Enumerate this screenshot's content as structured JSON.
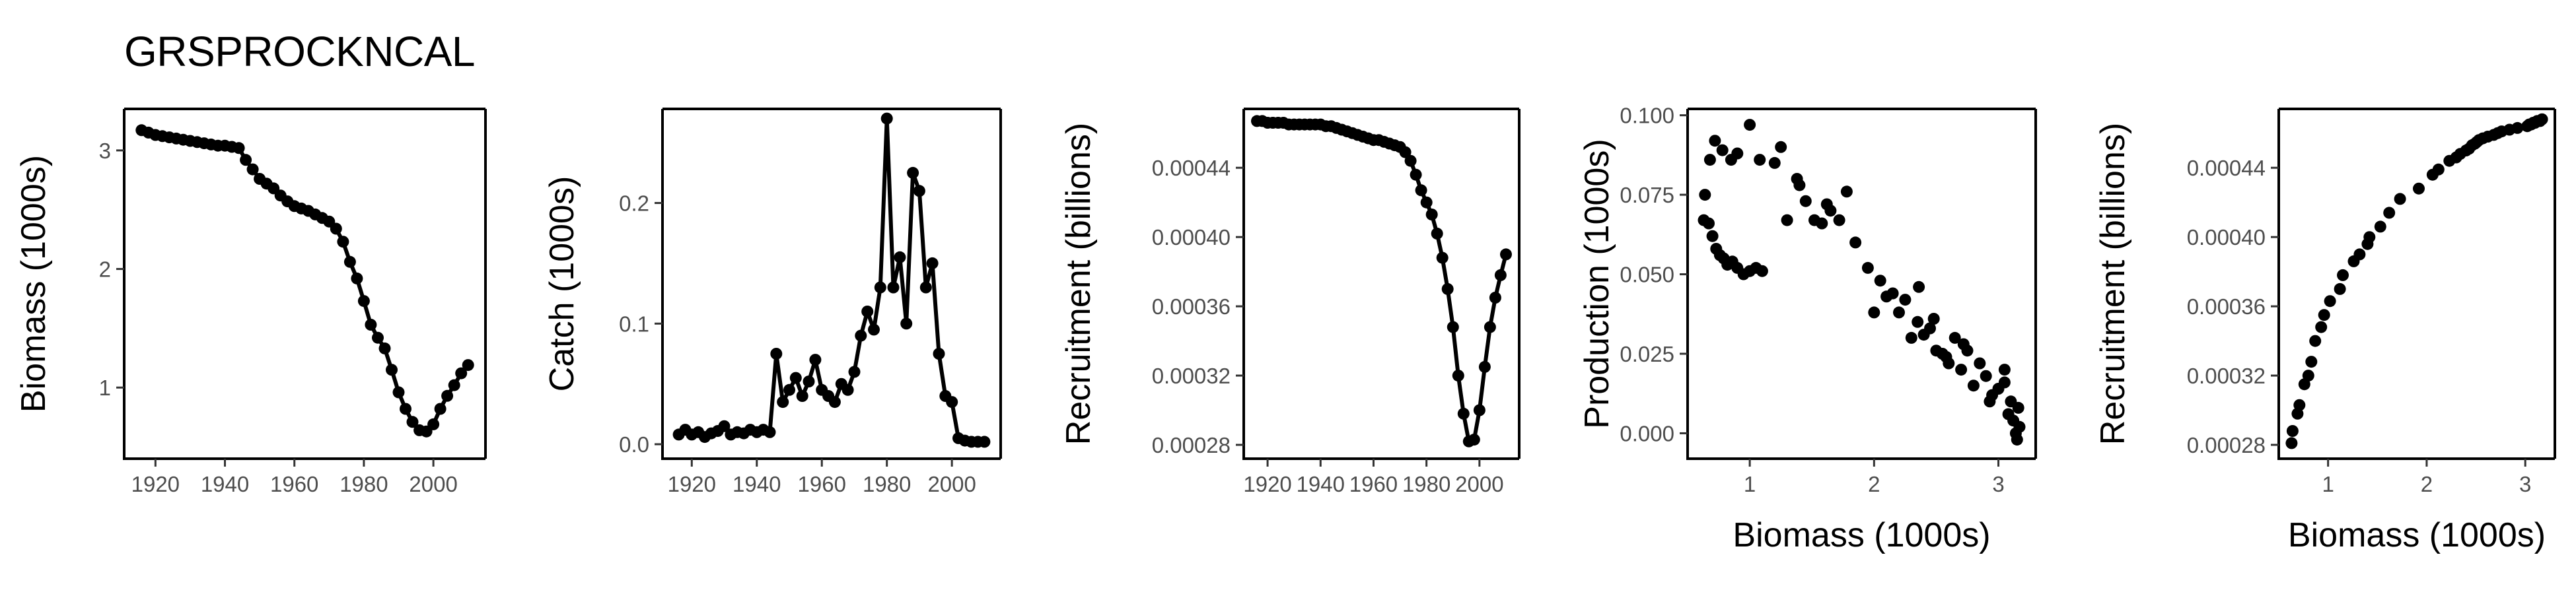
{
  "title": "GRSPROCKNCAL",
  "colors": {
    "points": "#000000",
    "line": "#000000",
    "tick_text": "#4d4d4d"
  },
  "chart_data": [
    {
      "id": "biomass-ts",
      "type": "line",
      "xlabel": "",
      "ylabel": "Biomass (1000s)",
      "xlim": [
        1911,
        2015
      ],
      "ylim": [
        0.4,
        3.35
      ],
      "xticks": [
        1920,
        1940,
        1960,
        1980,
        2000
      ],
      "yticks": [
        1,
        2,
        3
      ],
      "ytick_labels": [
        "1",
        "2",
        "3"
      ],
      "points": true,
      "x": [
        1916,
        1918,
        1920,
        1922,
        1924,
        1926,
        1928,
        1930,
        1932,
        1934,
        1936,
        1938,
        1940,
        1942,
        1944,
        1946,
        1948,
        1950,
        1952,
        1954,
        1956,
        1958,
        1960,
        1962,
        1964,
        1966,
        1968,
        1970,
        1972,
        1974,
        1976,
        1978,
        1980,
        1982,
        1984,
        1986,
        1988,
        1990,
        1992,
        1994,
        1996,
        1998,
        2000,
        2002,
        2004,
        2006,
        2008,
        2010
      ],
      "y": [
        3.17,
        3.15,
        3.13,
        3.12,
        3.11,
        3.1,
        3.09,
        3.08,
        3.07,
        3.06,
        3.05,
        3.04,
        3.04,
        3.03,
        3.02,
        2.92,
        2.84,
        2.76,
        2.72,
        2.68,
        2.62,
        2.57,
        2.53,
        2.51,
        2.49,
        2.46,
        2.43,
        2.4,
        2.34,
        2.23,
        2.06,
        1.92,
        1.73,
        1.53,
        1.42,
        1.33,
        1.15,
        0.96,
        0.82,
        0.71,
        0.64,
        0.63,
        0.69,
        0.82,
        0.93,
        1.02,
        1.12,
        1.19
      ]
    },
    {
      "id": "catch-ts",
      "type": "line",
      "xlabel": "",
      "ylabel": "Catch (1000s)",
      "xlim": [
        1911,
        2015
      ],
      "ylim": [
        -0.012,
        0.278
      ],
      "xticks": [
        1920,
        1940,
        1960,
        1980,
        2000
      ],
      "yticks": [
        0.0,
        0.1,
        0.2
      ],
      "ytick_labels": [
        "0.0",
        "0.1",
        "0.2"
      ],
      "points": true,
      "x": [
        1916,
        1918,
        1920,
        1922,
        1924,
        1926,
        1928,
        1930,
        1932,
        1934,
        1936,
        1938,
        1940,
        1942,
        1944,
        1946,
        1948,
        1950,
        1952,
        1954,
        1956,
        1958,
        1960,
        1962,
        1964,
        1966,
        1968,
        1970,
        1972,
        1974,
        1976,
        1978,
        1980,
        1982,
        1984,
        1986,
        1988,
        1990,
        1992,
        1994,
        1996,
        1998,
        2000,
        2002,
        2004,
        2006,
        2008,
        2010
      ],
      "y": [
        0.008,
        0.012,
        0.008,
        0.01,
        0.006,
        0.009,
        0.011,
        0.015,
        0.008,
        0.01,
        0.009,
        0.012,
        0.01,
        0.012,
        0.01,
        0.075,
        0.035,
        0.045,
        0.055,
        0.04,
        0.052,
        0.07,
        0.045,
        0.04,
        0.035,
        0.05,
        0.045,
        0.06,
        0.09,
        0.11,
        0.095,
        0.13,
        0.27,
        0.13,
        0.155,
        0.1,
        0.225,
        0.21,
        0.13,
        0.15,
        0.075,
        0.04,
        0.035,
        0.005,
        0.003,
        0.002,
        0.002,
        0.002
      ]
    },
    {
      "id": "recruitment-ts",
      "type": "line",
      "xlabel": "",
      "ylabel": "Recruitment (billions)",
      "xlim": [
        1911,
        2015
      ],
      "ylim": [
        0.000272,
        0.000474
      ],
      "xticks": [
        1920,
        1940,
        1960,
        1980,
        2000
      ],
      "xtick_labels": [
        "1920",
        "1940",
        "1960",
        "1980",
        "2000"
      ],
      "yticks": [
        0.00028,
        0.00032,
        0.00036,
        0.0004,
        0.00044
      ],
      "ytick_labels": [
        "0.00028",
        "0.00032",
        "0.00036",
        "0.00040",
        "0.00044"
      ],
      "points": true,
      "x": [
        1916,
        1918,
        1920,
        1922,
        1924,
        1926,
        1928,
        1930,
        1932,
        1934,
        1936,
        1938,
        1940,
        1942,
        1944,
        1946,
        1948,
        1950,
        1952,
        1954,
        1956,
        1958,
        1960,
        1962,
        1964,
        1966,
        1968,
        1970,
        1972,
        1974,
        1976,
        1978,
        1980,
        1982,
        1984,
        1986,
        1988,
        1990,
        1992,
        1994,
        1996,
        1998,
        2000,
        2002,
        2004,
        2006,
        2008,
        2010
      ],
      "y": [
        0.000467,
        0.000467,
        0.000466,
        0.000466,
        0.000466,
        0.000466,
        0.000465,
        0.000465,
        0.000465,
        0.000465,
        0.000465,
        0.000465,
        0.000465,
        0.000464,
        0.000464,
        0.000463,
        0.000462,
        0.000461,
        0.00046,
        0.000459,
        0.000458,
        0.000457,
        0.000456,
        0.000456,
        0.000455,
        0.000454,
        0.000453,
        0.000452,
        0.000449,
        0.000444,
        0.000436,
        0.000427,
        0.00042,
        0.000413,
        0.000402,
        0.000388,
        0.00037,
        0.000348,
        0.00032,
        0.000298,
        0.000282,
        0.000283,
        0.0003,
        0.000325,
        0.000348,
        0.000365,
        0.000378,
        0.00039
      ]
    },
    {
      "id": "production-vs-biomass",
      "type": "scatter",
      "xlabel": "Biomass (1000s)",
      "ylabel": "Production (1000s)",
      "xlim": [
        0.5,
        3.3
      ],
      "ylim": [
        -0.008,
        0.102
      ],
      "xticks": [
        1,
        2,
        3
      ],
      "yticks": [
        0.0,
        0.025,
        0.05,
        0.075,
        0.1
      ],
      "ytick_labels": [
        "0.000",
        "0.025",
        "0.050",
        "0.075",
        "0.100"
      ],
      "x": [
        0.63,
        0.64,
        0.67,
        0.7,
        0.73,
        0.76,
        0.79,
        0.82,
        0.86,
        0.9,
        0.95,
        1.0,
        1.05,
        1.1,
        0.68,
        0.72,
        0.78,
        0.85,
        0.9,
        1.0,
        1.08,
        1.25,
        1.3,
        1.38,
        1.45,
        1.52,
        1.58,
        1.62,
        1.72,
        1.78,
        1.85,
        1.65,
        1.4,
        1.2,
        1.95,
        2.0,
        2.05,
        2.1,
        2.15,
        2.2,
        2.25,
        2.3,
        2.35,
        2.4,
        2.45,
        2.5,
        2.55,
        2.6,
        2.65,
        2.7,
        2.75,
        2.8,
        2.85,
        2.9,
        2.95,
        3.0,
        3.05,
        3.08,
        3.1,
        3.12,
        3.14,
        3.15,
        3.16,
        3.17,
        3.05,
        2.93,
        2.72,
        2.48,
        2.36,
        2.58
      ],
      "y": [
        0.067,
        0.075,
        0.066,
        0.062,
        0.058,
        0.056,
        0.055,
        0.053,
        0.054,
        0.052,
        0.05,
        0.051,
        0.052,
        0.051,
        0.086,
        0.092,
        0.089,
        0.086,
        0.088,
        0.097,
        0.086,
        0.09,
        0.067,
        0.08,
        0.073,
        0.067,
        0.066,
        0.072,
        0.067,
        0.076,
        0.06,
        0.07,
        0.078,
        0.085,
        0.052,
        0.038,
        0.048,
        0.043,
        0.044,
        0.038,
        0.042,
        0.03,
        0.035,
        0.031,
        0.033,
        0.026,
        0.025,
        0.022,
        0.03,
        0.02,
        0.026,
        0.015,
        0.022,
        0.018,
        0.012,
        0.014,
        0.02,
        0.006,
        0.01,
        0.004,
        0.0,
        -0.002,
        0.008,
        0.002,
        0.016,
        0.01,
        0.028,
        0.036,
        0.046,
        0.024
      ]
    },
    {
      "id": "recruitment-vs-biomass",
      "type": "scatter",
      "xlabel": "Biomass (1000s)",
      "ylabel": "Recruitment (billions)",
      "xlim": [
        0.5,
        3.3
      ],
      "ylim": [
        0.000272,
        0.000474
      ],
      "xticks": [
        1,
        2,
        3
      ],
      "yticks": [
        0.00028,
        0.00032,
        0.00036,
        0.0004,
        0.00044
      ],
      "ytick_labels": [
        "0.00028",
        "0.00032",
        "0.00036",
        "0.00040",
        "0.00044"
      ],
      "x": [
        0.63,
        0.64,
        0.69,
        0.71,
        0.76,
        0.8,
        0.83,
        0.87,
        0.93,
        0.96,
        1.02,
        1.12,
        1.15,
        1.26,
        1.32,
        1.4,
        1.42,
        1.53,
        1.62,
        1.73,
        1.92,
        2.06,
        2.12,
        2.23,
        2.3,
        2.34,
        2.4,
        2.43,
        2.46,
        2.49,
        2.51,
        2.53,
        2.57,
        2.62,
        2.68,
        2.72,
        2.76,
        2.84,
        2.92,
        3.02,
        3.04,
        3.06,
        3.08,
        3.1,
        3.12,
        3.15,
        3.17
      ],
      "y": [
        0.000281,
        0.000288,
        0.000298,
        0.000303,
        0.000315,
        0.00032,
        0.000328,
        0.00034,
        0.000348,
        0.000355,
        0.000363,
        0.00037,
        0.000378,
        0.000386,
        0.00039,
        0.000396,
        0.0004,
        0.000406,
        0.000414,
        0.000422,
        0.000428,
        0.000436,
        0.000439,
        0.000444,
        0.000446,
        0.000448,
        0.00045,
        0.000451,
        0.000453,
        0.000454,
        0.000455,
        0.000456,
        0.000457,
        0.000458,
        0.000459,
        0.00046,
        0.000461,
        0.000462,
        0.000463,
        0.000464,
        0.000465,
        0.000465,
        0.000466,
        0.000466,
        0.000467,
        0.000467,
        0.000468
      ]
    }
  ]
}
